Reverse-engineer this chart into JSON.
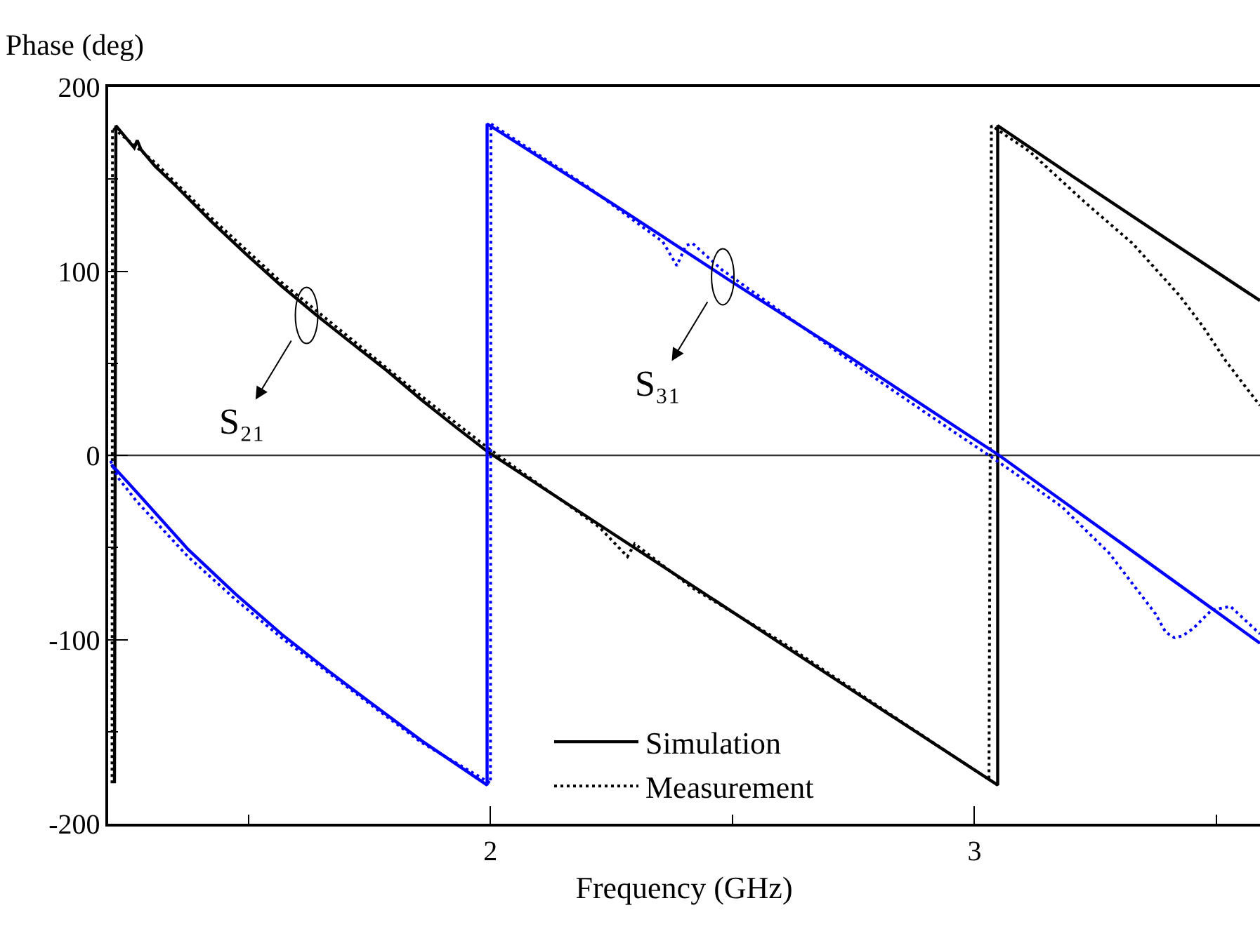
{
  "chart_data": {
    "type": "line",
    "xlabel": "Frequency (GHz)",
    "ylabel": "Phase (deg)",
    "xlim": [
      1.21,
      3.59
    ],
    "ylim": [
      -200,
      200
    ],
    "xticks": [
      {
        "value": 1.5,
        "label": null
      },
      2,
      {
        "value": 2.5,
        "label": null
      },
      3,
      {
        "value": 3.5,
        "label": null
      }
    ],
    "yticks": [
      -200,
      {
        "value": -150,
        "label": null
      },
      -100,
      {
        "value": -50,
        "label": null
      },
      0,
      {
        "value": 50,
        "label": null
      },
      100,
      {
        "value": 150,
        "label": null
      },
      200
    ],
    "grid": false,
    "legend": "bottom",
    "ref_lines": [
      {
        "axis": "y",
        "value": 0,
        "color": "#333333"
      }
    ],
    "annotations": [
      {
        "text": "S₂₁",
        "x": 1.62,
        "y": 76
      },
      {
        "text": "S₃₁",
        "x": 2.48,
        "y": 97
      }
    ],
    "series": [
      {
        "name": "Simulation",
        "color": "#000000",
        "line_style": "solid",
        "x": [
          1.223,
          1.226,
          1.264,
          1.27,
          1.278,
          1.307,
          1.351,
          1.423,
          1.496,
          1.568,
          1.641,
          1.713,
          1.786,
          1.858,
          1.93,
          1.994,
          2.25,
          2.5,
          2.75,
          3.048,
          3.048,
          3.2,
          3.4,
          3.59
        ],
        "values": [
          -178,
          179,
          167,
          171,
          166,
          157,
          146,
          127,
          109,
          92,
          76,
          61,
          46,
          30,
          15,
          2,
          -42,
          -85,
          -128,
          -179,
          179,
          152,
          117,
          84
        ]
      },
      {
        "name": "Measurement",
        "color": "#000000",
        "line_style": "dotted",
        "x": [
          1.218,
          1.219,
          1.27,
          1.307,
          1.423,
          1.568,
          1.713,
          1.858,
          2.0,
          2.225,
          2.283,
          2.298,
          2.417,
          2.6,
          2.8,
          3.03,
          3.035,
          3.041,
          3.114,
          3.23,
          3.327,
          3.423,
          3.472,
          3.52,
          3.59
        ],
        "values": [
          -178,
          178,
          167,
          159,
          129,
          94,
          63,
          32,
          3,
          -39,
          -55,
          -48,
          -72,
          -101,
          -136,
          -176,
          179,
          178,
          165,
          137,
          115,
          87,
          70,
          51,
          27
        ]
      },
      {
        "color": "#0000ff",
        "line_style": "solid",
        "x": [
          1.217,
          1.269,
          1.375,
          1.472,
          1.568,
          1.665,
          1.761,
          1.858,
          1.993,
          1.993,
          2.25,
          2.5,
          2.75,
          3.051,
          3.3,
          3.49,
          3.59
        ],
        "values": [
          -5,
          -20,
          -51,
          -75,
          -97,
          -117,
          -136,
          -155,
          -179,
          180,
          137,
          94,
          52,
          0,
          -47,
          -83,
          -102
        ]
      },
      {
        "color": "#0000ff",
        "line_style": "dotted",
        "x": [
          1.215,
          1.23,
          1.269,
          1.375,
          1.472,
          1.568,
          1.665,
          1.761,
          1.858,
          2.0,
          2.001,
          2.2,
          2.356,
          2.385,
          2.404,
          2.418,
          2.477,
          2.75,
          2.911,
          3.03,
          3.085,
          3.181,
          3.278,
          3.374,
          3.395,
          3.413,
          3.43,
          3.452,
          3.49,
          3.529,
          3.59
        ],
        "values": [
          -3,
          -12,
          -25,
          -55,
          -78,
          -99,
          -118,
          -137,
          -156,
          -178,
          180,
          146,
          116,
          103,
          114,
          115,
          101,
          50,
          21,
          0,
          -10,
          -28,
          -53,
          -86,
          -96,
          -99,
          -98,
          -94,
          -84,
          -82,
          -97
        ]
      }
    ]
  }
}
